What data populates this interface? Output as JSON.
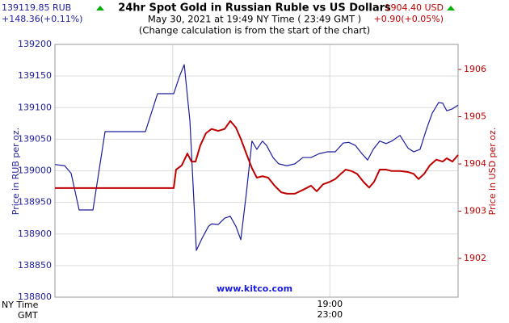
{
  "chart_data": {
    "type": "line",
    "title": "24hr Spot Gold in Russian Ruble vs US Dollars",
    "subtitle": "May 30, 2021 at 19:49 NY Time ( 23:49 GMT )",
    "note": "(Change calculation is from the start of the chart)",
    "left_quote": {
      "price": "139119.85 RUB",
      "change": "+148.36(+0.11%)"
    },
    "right_quote": {
      "price": "1904.40 USD",
      "change": "+0.90(+0.05%)"
    },
    "watermark": "www.kitco.com",
    "xlabel": "NY Time",
    "x2label": "GMT",
    "ylabel": "Price in RUB per oz.",
    "y2label": "Price in USD per oz.",
    "xlim": [
      17.25,
      19.816
    ],
    "xgrid": [
      18,
      19
    ],
    "xticks": [
      {
        "value": 19,
        "label": "19:00"
      }
    ],
    "x2ticks": [
      {
        "value": 19,
        "label": "23:00"
      }
    ],
    "ylim": [
      138800,
      139200
    ],
    "yticks": [
      138800,
      138850,
      138900,
      138950,
      139000,
      139050,
      139100,
      139150,
      139200
    ],
    "y2lim": [
      1901.18,
      1906.53
    ],
    "y2ticks": [
      1902,
      1903,
      1904,
      1905,
      1906
    ],
    "grid": true,
    "series": [
      {
        "color": "#1c1ca0",
        "x": [
          17.25,
          17.312,
          17.353,
          17.404,
          17.492,
          17.569,
          17.826,
          17.903,
          18.006,
          18.042,
          18.073,
          18.109,
          18.15,
          18.186,
          18.227,
          18.247,
          18.289,
          18.33,
          18.366,
          18.402,
          18.433,
          18.468,
          18.504,
          18.535,
          18.571,
          18.597,
          18.638,
          18.674,
          18.726,
          18.777,
          18.828,
          18.88,
          18.931,
          18.983,
          19.034,
          19.085,
          19.121,
          19.163,
          19.204,
          19.24,
          19.276,
          19.317,
          19.358,
          19.394,
          19.446,
          19.497,
          19.533,
          19.574,
          19.615,
          19.651,
          19.692,
          19.718,
          19.744,
          19.78,
          19.816
        ],
        "values": [
          139010,
          139008,
          138996,
          138938,
          138938,
          139062,
          139062,
          139122,
          139122,
          139149,
          139168,
          139079,
          138874,
          138893,
          138912,
          138916,
          138915,
          138925,
          138928,
          138912,
          138891,
          138964,
          139047,
          139034,
          139047,
          139040,
          139021,
          139011,
          139008,
          139011,
          139021,
          139021,
          139027,
          139030,
          139030,
          139044,
          139045,
          139040,
          139027,
          139017,
          139034,
          139047,
          139043,
          139047,
          139056,
          139036,
          139030,
          139034,
          139066,
          139091,
          139108,
          139107,
          139095,
          139098,
          139104
        ]
      },
      {
        "color": "#c00000",
        "axis": "y2",
        "x": [
          17.25,
          18.006,
          18.021,
          18.057,
          18.093,
          18.119,
          18.145,
          18.175,
          18.211,
          18.247,
          18.289,
          18.33,
          18.366,
          18.402,
          18.433,
          18.468,
          18.504,
          18.535,
          18.571,
          18.607,
          18.648,
          18.69,
          18.726,
          18.777,
          18.828,
          18.88,
          18.916,
          18.957,
          18.998,
          19.034,
          19.07,
          19.101,
          19.137,
          19.173,
          19.214,
          19.25,
          19.281,
          19.317,
          19.358,
          19.394,
          19.446,
          19.497,
          19.533,
          19.564,
          19.6,
          19.636,
          19.677,
          19.718,
          19.744,
          19.78,
          19.816
        ],
        "values": [
          1903.49,
          1903.49,
          1903.88,
          1903.97,
          1904.22,
          1904.05,
          1904.05,
          1904.39,
          1904.65,
          1904.74,
          1904.7,
          1904.74,
          1904.91,
          1904.77,
          1904.53,
          1904.22,
          1903.91,
          1903.71,
          1903.74,
          1903.71,
          1903.54,
          1903.4,
          1903.37,
          1903.37,
          1903.45,
          1903.54,
          1903.42,
          1903.57,
          1903.62,
          1903.68,
          1903.79,
          1903.88,
          1903.85,
          1903.79,
          1903.62,
          1903.5,
          1903.62,
          1903.88,
          1903.88,
          1903.85,
          1903.85,
          1903.83,
          1903.79,
          1903.68,
          1903.79,
          1903.97,
          1904.09,
          1904.05,
          1904.12,
          1904.05,
          1904.19
        ]
      }
    ]
  }
}
